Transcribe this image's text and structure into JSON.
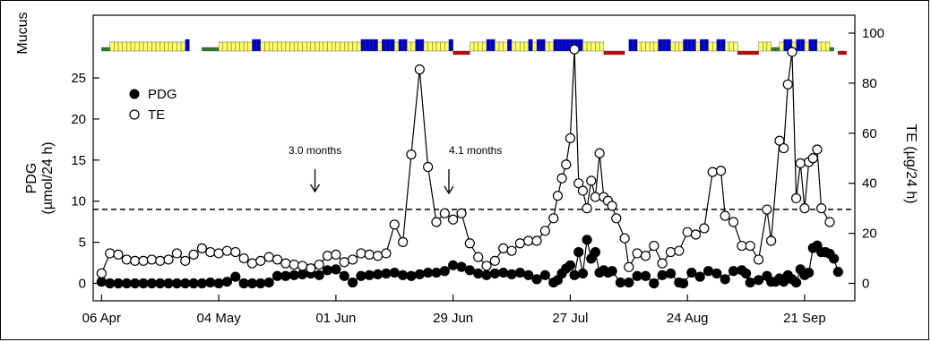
{
  "chart_data": {
    "type": "line",
    "mucus_label": "Mucus",
    "ylabel_left": [
      "PDG",
      "(µmol/24 h)"
    ],
    "ylabel_right": "TE (µg/24 h)",
    "ylim_left": [
      0,
      25
    ],
    "ylim_right": [
      0,
      100
    ],
    "yticks_left": [
      0,
      5,
      10,
      15,
      20,
      25
    ],
    "yticks_right": [
      0,
      20,
      40,
      60,
      80,
      100
    ],
    "xticks": [
      {
        "day": 0,
        "label": "06 Apr"
      },
      {
        "day": 28,
        "label": "04 May"
      },
      {
        "day": 56,
        "label": "01 Jun"
      },
      {
        "day": 84,
        "label": "29 Jun"
      },
      {
        "day": 112,
        "label": "27 Jul"
      },
      {
        "day": 140,
        "label": "24 Aug"
      },
      {
        "day": 168,
        "label": "21 Sep"
      }
    ],
    "xlim_days": [
      -2,
      180
    ],
    "threshold_left": 9,
    "annotations": [
      {
        "text": "3.0 months",
        "day": 51
      },
      {
        "text": "4.1 months",
        "day": 83
      }
    ],
    "legend": [
      {
        "name": "PDG",
        "marker": "filled-circle"
      },
      {
        "name": "TE",
        "marker": "open-circle"
      }
    ],
    "legend_position": "top-left",
    "series": [
      {
        "name": "PDG",
        "axis": "left",
        "marker": "filled",
        "points": [
          [
            0,
            0.2
          ],
          [
            2,
            0.0
          ],
          [
            4,
            0.0
          ],
          [
            6,
            0.0
          ],
          [
            8,
            0.0
          ],
          [
            10,
            0.0
          ],
          [
            12,
            0.0
          ],
          [
            14,
            0.0
          ],
          [
            16,
            0.0
          ],
          [
            18,
            0.0
          ],
          [
            20,
            0.0
          ],
          [
            22,
            0.0
          ],
          [
            24,
            0.0
          ],
          [
            26,
            0.1
          ],
          [
            28,
            0.0
          ],
          [
            30,
            0.2
          ],
          [
            32,
            0.8
          ],
          [
            34,
            0.0
          ],
          [
            36,
            0.0
          ],
          [
            38,
            0.0
          ],
          [
            40,
            0.1
          ],
          [
            42,
            0.9
          ],
          [
            44,
            0.9
          ],
          [
            46,
            1.0
          ],
          [
            48,
            1.1
          ],
          [
            50,
            1.2
          ],
          [
            52,
            1.0
          ],
          [
            54,
            1.6
          ],
          [
            56,
            1.7
          ],
          [
            58,
            0.9
          ],
          [
            60,
            0.1
          ],
          [
            62,
            0.9
          ],
          [
            64,
            1.0
          ],
          [
            66,
            1.1
          ],
          [
            68,
            1.2
          ],
          [
            70,
            1.3
          ],
          [
            72,
            1.0
          ],
          [
            74,
            0.9
          ],
          [
            76,
            1.1
          ],
          [
            78,
            1.3
          ],
          [
            80,
            1.3
          ],
          [
            82,
            1.5
          ],
          [
            84,
            2.2
          ],
          [
            86,
            2.0
          ],
          [
            88,
            1.6
          ],
          [
            90,
            1.2
          ],
          [
            92,
            1.0
          ],
          [
            94,
            1.2
          ],
          [
            96,
            1.3
          ],
          [
            98,
            1.1
          ],
          [
            100,
            1.3
          ],
          [
            102,
            1.0
          ],
          [
            104,
            0.5
          ],
          [
            106,
            1.0
          ],
          [
            108,
            0.1
          ],
          [
            109,
            0.4
          ],
          [
            110,
            1.2
          ],
          [
            111,
            1.8
          ],
          [
            112,
            2.2
          ],
          [
            113,
            1.0
          ],
          [
            114,
            3.8
          ],
          [
            115,
            1.2
          ],
          [
            116,
            5.3
          ],
          [
            117,
            3.0
          ],
          [
            118,
            3.8
          ],
          [
            119,
            1.3
          ],
          [
            120,
            1.6
          ],
          [
            121,
            1.3
          ],
          [
            122,
            1.5
          ],
          [
            124,
            0.1
          ],
          [
            126,
            0.1
          ],
          [
            128,
            0.9
          ],
          [
            130,
            0.9
          ],
          [
            132,
            0.0
          ],
          [
            134,
            1.0
          ],
          [
            136,
            1.2
          ],
          [
            138,
            0.1
          ],
          [
            139,
            0.0
          ],
          [
            141,
            1.3
          ],
          [
            143,
            0.8
          ],
          [
            145,
            1.5
          ],
          [
            147,
            1.2
          ],
          [
            149,
            0.5
          ],
          [
            151,
            1.5
          ],
          [
            153,
            1.6
          ],
          [
            154,
            1.2
          ],
          [
            155,
            0.1
          ],
          [
            157,
            0.4
          ],
          [
            159,
            0.9
          ],
          [
            160,
            0.2
          ],
          [
            161,
            0.2
          ],
          [
            162,
            0.6
          ],
          [
            163,
            0.2
          ],
          [
            164,
            1.0
          ],
          [
            165,
            0.5
          ],
          [
            166,
            0.1
          ],
          [
            167,
            1.7
          ],
          [
            168,
            1.0
          ],
          [
            169,
            1.3
          ],
          [
            170,
            4.3
          ],
          [
            171,
            4.6
          ],
          [
            172,
            3.8
          ],
          [
            173,
            3.8
          ],
          [
            174,
            3.6
          ],
          [
            175,
            3.0
          ],
          [
            176,
            1.4
          ]
        ]
      },
      {
        "name": "TE",
        "axis": "right",
        "marker": "open",
        "points": [
          [
            0,
            4.0
          ],
          [
            2,
            12.0
          ],
          [
            4,
            11.5
          ],
          [
            6,
            9.5
          ],
          [
            8,
            9.0
          ],
          [
            10,
            9.0
          ],
          [
            12,
            9.5
          ],
          [
            14,
            9.0
          ],
          [
            16,
            9.5
          ],
          [
            18,
            12.0
          ],
          [
            20,
            9.0
          ],
          [
            22,
            11.5
          ],
          [
            24,
            14.0
          ],
          [
            26,
            12.5
          ],
          [
            28,
            12.0
          ],
          [
            30,
            13.0
          ],
          [
            32,
            12.5
          ],
          [
            34,
            10.0
          ],
          [
            36,
            8.0
          ],
          [
            38,
            9.0
          ],
          [
            40,
            10.5
          ],
          [
            42,
            9.5
          ],
          [
            44,
            8.0
          ],
          [
            46,
            7.5
          ],
          [
            48,
            7.0
          ],
          [
            50,
            6.0
          ],
          [
            52,
            7.5
          ],
          [
            54,
            11.0
          ],
          [
            56,
            11.5
          ],
          [
            58,
            8.5
          ],
          [
            60,
            9.5
          ],
          [
            62,
            12.0
          ],
          [
            64,
            11.5
          ],
          [
            66,
            11.0
          ],
          [
            68,
            12.0
          ],
          [
            70,
            23.5
          ],
          [
            72,
            16.5
          ],
          [
            74,
            51.5
          ],
          [
            76,
            85.5
          ],
          [
            78,
            46.5
          ],
          [
            80,
            24.5
          ],
          [
            82,
            28.0
          ],
          [
            84,
            25.5
          ],
          [
            86,
            28.0
          ],
          [
            88,
            16.0
          ],
          [
            90,
            10.5
          ],
          [
            92,
            7.0
          ],
          [
            94,
            9.0
          ],
          [
            96,
            14.0
          ],
          [
            98,
            13.0
          ],
          [
            100,
            16.0
          ],
          [
            102,
            17.0
          ],
          [
            104,
            17.0
          ],
          [
            106,
            21.0
          ],
          [
            108,
            26.0
          ],
          [
            109,
            35.0
          ],
          [
            110,
            42.0
          ],
          [
            111,
            47.5
          ],
          [
            112,
            58.0
          ],
          [
            113,
            93.5
          ],
          [
            114,
            40.0
          ],
          [
            115,
            37.0
          ],
          [
            116,
            30.0
          ],
          [
            117,
            41.0
          ],
          [
            118,
            34.5
          ],
          [
            119,
            52.0
          ],
          [
            120,
            34.5
          ],
          [
            121,
            33.0
          ],
          [
            122,
            31.0
          ],
          [
            123,
            26.0
          ],
          [
            125,
            18.0
          ],
          [
            126,
            6.5
          ],
          [
            128,
            12.0
          ],
          [
            130,
            11.0
          ],
          [
            132,
            15.0
          ],
          [
            134,
            8.0
          ],
          [
            136,
            12.5
          ],
          [
            138,
            13.0
          ],
          [
            140,
            20.5
          ],
          [
            142,
            19.5
          ],
          [
            144,
            22.0
          ],
          [
            146,
            44.5
          ],
          [
            148,
            45.0
          ],
          [
            149,
            27.0
          ],
          [
            151,
            24.5
          ],
          [
            153,
            15.0
          ],
          [
            155,
            15.0
          ],
          [
            157,
            9.5
          ],
          [
            159,
            29.5
          ],
          [
            160,
            17.0
          ],
          [
            162,
            57.0
          ],
          [
            163,
            54.0
          ],
          [
            164,
            79.5
          ],
          [
            165,
            92.5
          ],
          [
            166,
            34.0
          ],
          [
            167,
            48.0
          ],
          [
            168,
            30.0
          ],
          [
            169,
            48.5
          ],
          [
            170,
            50.0
          ],
          [
            171,
            53.5
          ],
          [
            172,
            30.0
          ],
          [
            174,
            24.5
          ]
        ]
      }
    ],
    "mucus": {
      "colors": {
        "yellow": "#ffff66",
        "blue": "#0000cc",
        "green": "#2e7d32",
        "red": "#cc0000"
      },
      "segments": [
        {
          "start": 0,
          "end": 2,
          "type": "green"
        },
        {
          "start": 2,
          "end": 20,
          "type": "yellow"
        },
        {
          "start": 20,
          "end": 21,
          "type": "blue"
        },
        {
          "start": 24,
          "end": 28,
          "type": "green"
        },
        {
          "start": 28,
          "end": 36,
          "type": "yellow"
        },
        {
          "start": 36,
          "end": 38,
          "type": "blue"
        },
        {
          "start": 38,
          "end": 62,
          "type": "yellow"
        },
        {
          "start": 62,
          "end": 66,
          "type": "blue"
        },
        {
          "start": 66,
          "end": 67,
          "type": "yellow"
        },
        {
          "start": 67,
          "end": 70,
          "type": "blue"
        },
        {
          "start": 70,
          "end": 71,
          "type": "yellow"
        },
        {
          "start": 71,
          "end": 73,
          "type": "blue"
        },
        {
          "start": 73,
          "end": 75,
          "type": "yellow"
        },
        {
          "start": 75,
          "end": 77,
          "type": "blue"
        },
        {
          "start": 77,
          "end": 83,
          "type": "yellow"
        },
        {
          "start": 83,
          "end": 84,
          "type": "blue"
        },
        {
          "start": 84,
          "end": 88,
          "type": "red"
        },
        {
          "start": 88,
          "end": 92,
          "type": "yellow"
        },
        {
          "start": 92,
          "end": 94,
          "type": "blue"
        },
        {
          "start": 94,
          "end": 97,
          "type": "yellow"
        },
        {
          "start": 97,
          "end": 98,
          "type": "blue"
        },
        {
          "start": 98,
          "end": 102,
          "type": "yellow"
        },
        {
          "start": 102,
          "end": 103,
          "type": "blue"
        },
        {
          "start": 103,
          "end": 104,
          "type": "yellow"
        },
        {
          "start": 104,
          "end": 106,
          "type": "blue"
        },
        {
          "start": 106,
          "end": 108,
          "type": "yellow"
        },
        {
          "start": 108,
          "end": 110,
          "type": "blue"
        },
        {
          "start": 110,
          "end": 115,
          "type": "blue"
        },
        {
          "start": 115,
          "end": 120,
          "type": "yellow"
        },
        {
          "start": 120,
          "end": 125,
          "type": "red"
        },
        {
          "start": 126,
          "end": 128,
          "type": "blue"
        },
        {
          "start": 128,
          "end": 133,
          "type": "yellow"
        },
        {
          "start": 133,
          "end": 136,
          "type": "blue"
        },
        {
          "start": 136,
          "end": 139,
          "type": "yellow"
        },
        {
          "start": 139,
          "end": 142,
          "type": "blue"
        },
        {
          "start": 142,
          "end": 143,
          "type": "yellow"
        },
        {
          "start": 143,
          "end": 145,
          "type": "blue"
        },
        {
          "start": 145,
          "end": 147,
          "type": "yellow"
        },
        {
          "start": 147,
          "end": 149,
          "type": "blue"
        },
        {
          "start": 149,
          "end": 152,
          "type": "yellow"
        },
        {
          "start": 152,
          "end": 157,
          "type": "red"
        },
        {
          "start": 157,
          "end": 160,
          "type": "yellow"
        },
        {
          "start": 160,
          "end": 162,
          "type": "green"
        },
        {
          "start": 162,
          "end": 163,
          "type": "yellow"
        },
        {
          "start": 163,
          "end": 165,
          "type": "blue"
        },
        {
          "start": 165,
          "end": 166,
          "type": "yellow"
        },
        {
          "start": 166,
          "end": 168,
          "type": "blue"
        },
        {
          "start": 168,
          "end": 169,
          "type": "yellow"
        },
        {
          "start": 169,
          "end": 171,
          "type": "blue"
        },
        {
          "start": 171,
          "end": 174,
          "type": "yellow"
        },
        {
          "start": 174,
          "end": 175,
          "type": "green"
        },
        {
          "start": 176,
          "end": 178,
          "type": "red"
        }
      ]
    }
  }
}
